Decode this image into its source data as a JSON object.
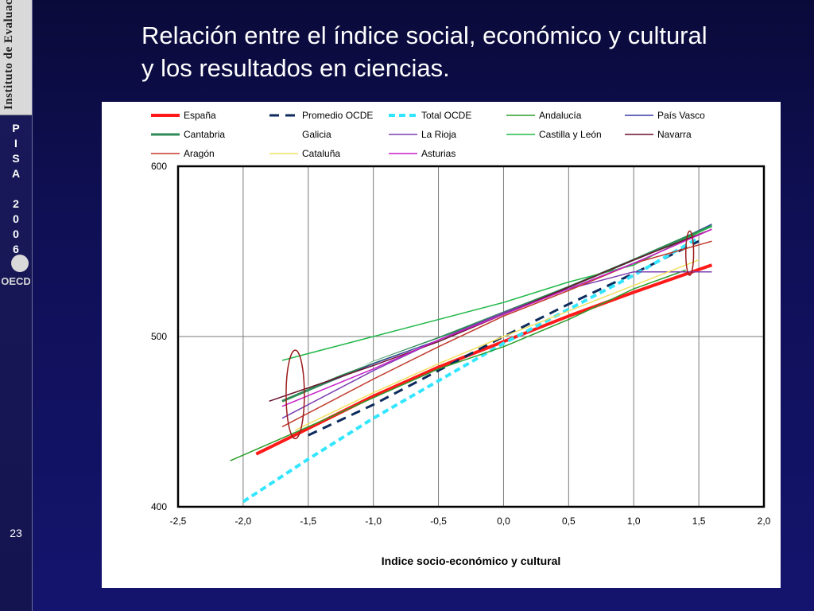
{
  "slide": {
    "title_line1": "Relación entre el índice social, económico y cultural",
    "title_line2": "y los resultados en ciencias.",
    "slide_number": "23"
  },
  "sidebar": {
    "logo_text": "Instituto de Evaluación",
    "pisa_letters": [
      "P",
      "I",
      "S",
      "A",
      "",
      "2",
      "0",
      "0",
      "6"
    ],
    "oecd_logo_text": "OECD"
  },
  "colors": {
    "background": "#0f0f55",
    "panel": "#ffffff",
    "annotation": "#9b1b1b"
  },
  "chart_data": {
    "type": "line",
    "title": "",
    "xlabel": "Indice socio-económico y cultural",
    "ylabel": "",
    "xlim": [
      -2.5,
      2.0
    ],
    "ylim": [
      400,
      600
    ],
    "x_ticks": [
      "-2,5",
      "-2,0",
      "-1,5",
      "-1,0",
      "-0,5",
      "0,0",
      "0,5",
      "1,0",
      "1,5",
      "2,0"
    ],
    "y_ticks": [
      "400",
      "500",
      "600"
    ],
    "grid": "vertical lines at x ticks, horizontal line at 500",
    "legend_position": "top",
    "series": [
      {
        "name": "España",
        "color": "#ff1a1a",
        "width": 4,
        "dash": "",
        "x": [
          -1.9,
          -1.5,
          -1.0,
          -0.5,
          0.0,
          0.5,
          1.0,
          1.6
        ],
        "y": [
          431,
          446,
          465,
          482,
          497,
          512,
          526,
          542
        ]
      },
      {
        "name": "Promedio OCDE",
        "color": "#0d2b5c",
        "width": 3,
        "dash": "12,8",
        "x": [
          -1.5,
          -1.0,
          -0.5,
          0.0,
          0.5,
          1.0,
          1.5
        ],
        "y": [
          442,
          460,
          480,
          500,
          519,
          537,
          556
        ]
      },
      {
        "name": "Total OCDE",
        "color": "#33e6ff",
        "width": 4,
        "dash": "8,5",
        "x": [
          -2.0,
          -1.5,
          -1.0,
          -0.5,
          0.0,
          0.5,
          1.0,
          1.5
        ],
        "y": [
          403,
          428,
          452,
          474,
          496,
          516,
          536,
          558
        ]
      },
      {
        "name": "Andalucía",
        "color": "#2a9d2a",
        "width": 1.5,
        "dash": "",
        "x": [
          -2.1,
          -1.5,
          -1.0,
          -0.5,
          0.0,
          0.5,
          1.0,
          1.4
        ],
        "y": [
          427,
          447,
          464,
          481,
          494,
          510,
          528,
          539
        ]
      },
      {
        "name": "País Vasco",
        "color": "#3a3aa8",
        "width": 1.5,
        "dash": "",
        "x": [
          -1.7,
          -1.0,
          -0.5,
          0.0,
          0.5,
          1.0,
          1.6
        ],
        "y": [
          462,
          484,
          498,
          513,
          528,
          544,
          566
        ]
      },
      {
        "name": "Cantabria",
        "color": "#2e8b57",
        "width": 3,
        "dash": "",
        "x": [
          -1.7,
          -1.0,
          -0.5,
          0.0,
          0.5,
          1.0,
          1.6
        ],
        "y": [
          462,
          485,
          499,
          514,
          529,
          545,
          565
        ]
      },
      {
        "name": "Galicia",
        "color": "#ffffff",
        "width": 1.5,
        "dash": "",
        "x": [
          -1.7,
          -1.0,
          0.0,
          1.0,
          1.6
        ],
        "y": [
          465,
          485,
          512,
          544,
          563
        ]
      },
      {
        "name": "La Rioja",
        "color": "#7b3fb0",
        "width": 1.5,
        "dash": "",
        "x": [
          -1.7,
          -1.0,
          -0.5,
          0.0,
          0.5,
          1.0,
          1.6
        ],
        "y": [
          452,
          480,
          498,
          514,
          528,
          538,
          538
        ]
      },
      {
        "name": "Castilla y León",
        "color": "#22b84a",
        "width": 1.5,
        "dash": "",
        "x": [
          -1.7,
          -1.0,
          0.0,
          0.5,
          1.0,
          1.6
        ],
        "y": [
          486,
          500,
          520,
          532,
          542,
          565
        ]
      },
      {
        "name": "Navarra",
        "color": "#6b0f2a",
        "width": 1.5,
        "dash": "",
        "x": [
          -1.8,
          -1.0,
          -0.5,
          0.0,
          0.5,
          1.0,
          1.6
        ],
        "y": [
          462,
          483,
          497,
          513,
          529,
          545,
          563
        ]
      },
      {
        "name": "Aragón",
        "color": "#c0392b",
        "width": 1.5,
        "dash": "",
        "x": [
          -1.7,
          -1.0,
          -0.5,
          0.0,
          0.5,
          1.0,
          1.6
        ],
        "y": [
          447,
          475,
          494,
          512,
          527,
          543,
          556
        ]
      },
      {
        "name": "Cataluña",
        "color": "#f0e060",
        "width": 1.5,
        "dash": "",
        "x": [
          -1.6,
          -1.0,
          -0.5,
          0.0,
          0.5,
          1.0,
          1.5
        ],
        "y": [
          445,
          467,
          484,
          500,
          515,
          530,
          545
        ]
      },
      {
        "name": "Asturias",
        "color": "#c71fc7",
        "width": 1.5,
        "dash": "",
        "x": [
          -1.7,
          -1.0,
          -0.5,
          0.0,
          0.5,
          1.0,
          1.6
        ],
        "y": [
          459,
          481,
          498,
          513,
          528,
          543,
          563
        ]
      }
    ],
    "annotations": [
      {
        "type": "ellipse",
        "x": -1.6,
        "y": 466,
        "rx": 0.07,
        "ry": 26
      },
      {
        "type": "ellipse",
        "x": 1.43,
        "y": 549,
        "rx": 0.03,
        "ry": 13
      }
    ]
  }
}
